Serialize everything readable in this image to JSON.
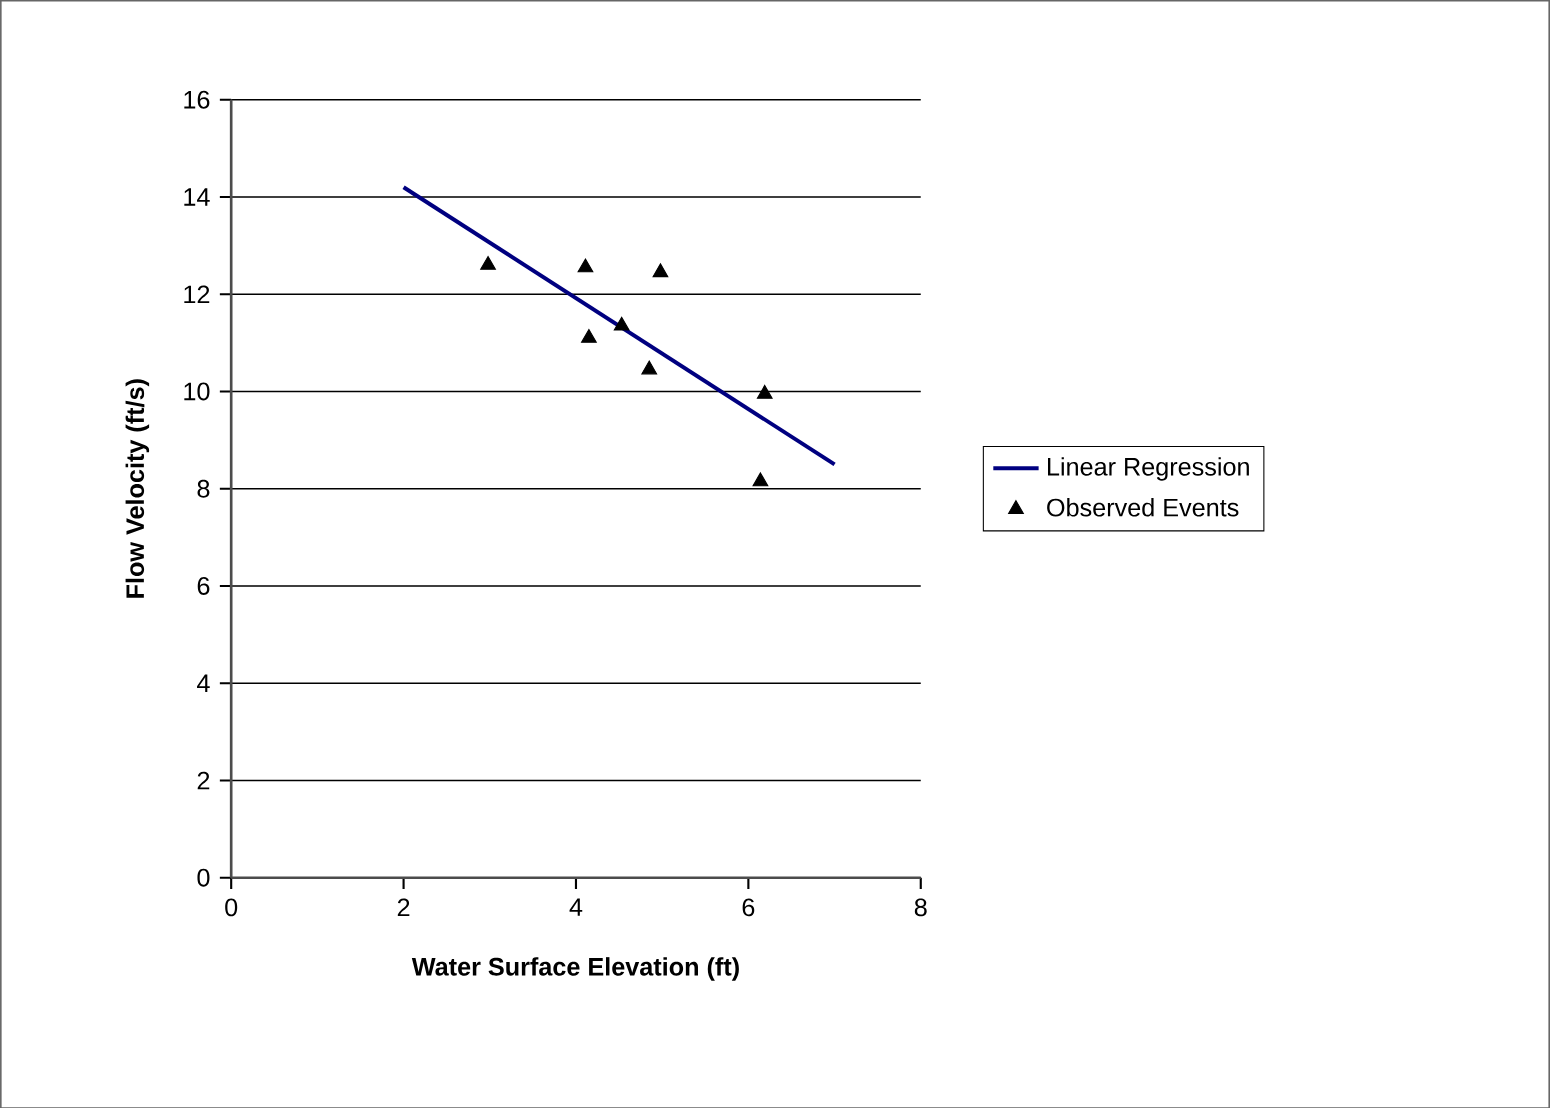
{
  "chart_data": {
    "type": "scatter",
    "xlabel": "Water Surface Elevation (ft)",
    "ylabel": "Flow Velocity (ft/s)",
    "xlim": [
      0,
      8
    ],
    "xticks": [
      0,
      2,
      4,
      6,
      8
    ],
    "ylim": [
      0,
      16
    ],
    "yticks": [
      0,
      2,
      4,
      6,
      8,
      10,
      12,
      14,
      16
    ],
    "grid": "y",
    "legend": "right",
    "series": [
      {
        "name": "Linear Regression",
        "type": "line",
        "color": "#000080",
        "marker": "none",
        "line_style": "solid",
        "x": [
          2,
          7
        ],
        "values": [
          14.2,
          8.5
        ]
      },
      {
        "name": "Observed Events",
        "color": "#000000",
        "marker": "triangle",
        "x": [
          2.98,
          4.11,
          4.98,
          4.15,
          4.53,
          4.85,
          6.19,
          6.14
        ],
        "values": [
          12.6,
          12.55,
          12.45,
          11.1,
          11.35,
          10.45,
          9.95,
          8.15
        ]
      }
    ]
  }
}
